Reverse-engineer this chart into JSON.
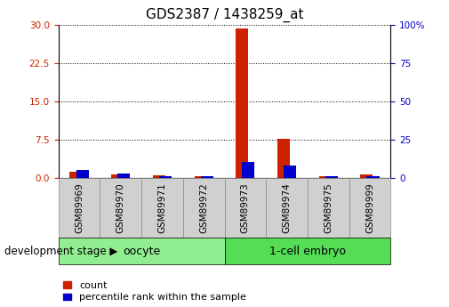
{
  "title": "GDS2387 / 1438259_at",
  "samples": [
    "GSM89969",
    "GSM89970",
    "GSM89971",
    "GSM89972",
    "GSM89973",
    "GSM89974",
    "GSM89975",
    "GSM89999"
  ],
  "count_values": [
    1.2,
    0.8,
    0.5,
    0.4,
    29.2,
    7.6,
    0.3,
    0.7
  ],
  "percentile_values": [
    5.5,
    3.0,
    1.5,
    1.5,
    10.5,
    8.0,
    1.5,
    1.5
  ],
  "groups": [
    {
      "label": "oocyte",
      "indices": [
        0,
        1,
        2,
        3
      ],
      "color": "#90EE90"
    },
    {
      "label": "1-cell embryo",
      "indices": [
        4,
        5,
        6,
        7
      ],
      "color": "#55DD55"
    }
  ],
  "left_ylim": [
    0,
    30
  ],
  "left_yticks": [
    0,
    7.5,
    15,
    22.5,
    30
  ],
  "right_ylim": [
    0,
    100
  ],
  "right_yticks": [
    0,
    25,
    50,
    75,
    100
  ],
  "left_tick_color": "#cc2200",
  "right_tick_color": "#0000cc",
  "bar_width": 0.3,
  "red_color": "#cc2200",
  "blue_color": "#0000cc",
  "bg_color": "#ffffff",
  "title_fontsize": 11,
  "tick_fontsize": 7.5,
  "legend_fontsize": 8,
  "group_label_fontsize": 9,
  "dev_stage_fontsize": 8.5,
  "development_stage_text": "development stage",
  "legend_items": [
    "count",
    "percentile rank within the sample"
  ],
  "gray_box_color": "#d0d0d0",
  "gray_box_edge_color": "#888888"
}
